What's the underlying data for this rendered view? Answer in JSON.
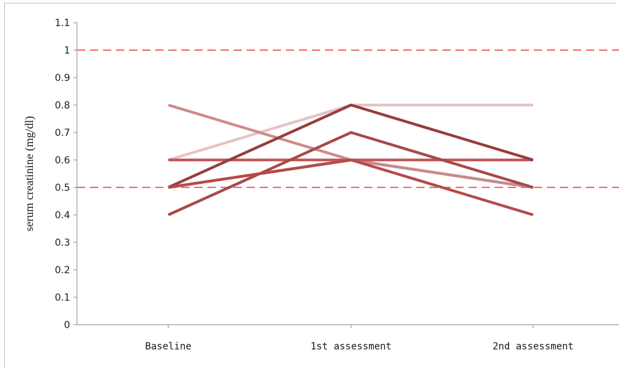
{
  "chart_data": {
    "type": "line",
    "categories": [
      "Baseline",
      "1st assessment",
      "2nd assessment"
    ],
    "ylabel": "serum  creatinine  (mg/dl)",
    "xlabel": "",
    "ylim": [
      0,
      1.1
    ],
    "yticks": [
      "0",
      "0.1",
      "0.2",
      "0.3",
      "0.4",
      "0.5",
      "0.6",
      "0.7",
      "0.8",
      "0.9",
      "1",
      "1.1"
    ],
    "grid": false,
    "reference_lines": [
      {
        "y": 1.0,
        "color": "#f07070",
        "style": "dashed"
      },
      {
        "y": 0.5,
        "color": "#f07070",
        "style": "dashed"
      }
    ],
    "series": [
      {
        "values": [
          0.6,
          0.8,
          0.8
        ],
        "color": "#e6c3c3"
      },
      {
        "values": [
          0.5,
          0.6,
          0.5
        ],
        "color": "#d9a8a8"
      },
      {
        "values": [
          0.8,
          0.6,
          0.5
        ],
        "color": "#cf8a8a"
      },
      {
        "values": [
          0.5,
          0.6,
          0.5
        ],
        "color": "#c98a8a"
      },
      {
        "values": [
          0.6,
          0.6,
          0.6
        ],
        "color": "#c05a5a"
      },
      {
        "values": [
          0.4,
          0.7,
          0.5
        ],
        "color": "#a84848"
      },
      {
        "values": [
          0.5,
          0.8,
          0.6
        ],
        "color": "#953d3d"
      },
      {
        "values": [
          0.5,
          0.6,
          0.4
        ],
        "color": "#b54a4a"
      }
    ]
  }
}
